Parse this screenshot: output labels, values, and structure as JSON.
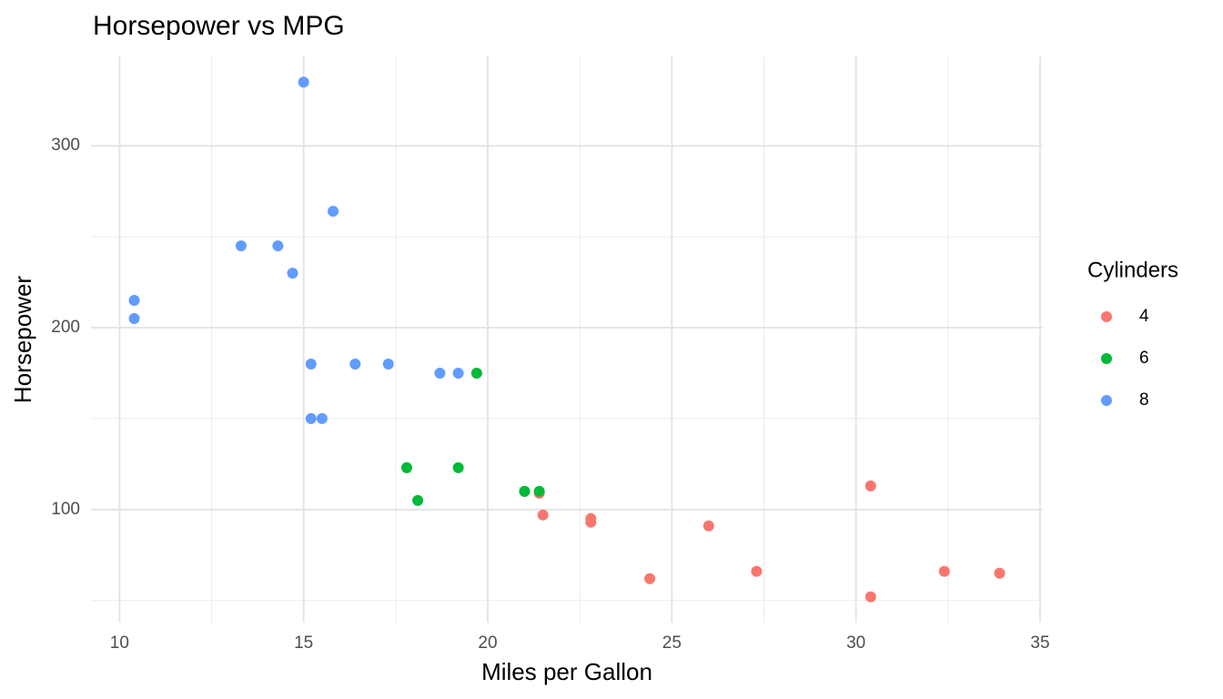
{
  "chart_data": {
    "type": "scatter",
    "title": "Horsepower vs MPG",
    "x_label": "Miles per Gallon",
    "y_label": "Horsepower",
    "legend_title": "Cylinders",
    "legend": "right",
    "grid": true,
    "xlim": [
      9.225,
      35.075
    ],
    "xticks": [
      10,
      15,
      20,
      25,
      30,
      35
    ],
    "ylim": [
      37.85,
      349.15
    ],
    "yticks": [
      100,
      200,
      300
    ],
    "series": [
      {
        "name": "4",
        "color": "#F8766D",
        "x": [
          22.8,
          24.4,
          22.8,
          32.4,
          30.4,
          33.9,
          21.5,
          27.3,
          26.0,
          30.4,
          21.4
        ],
        "values": [
          93,
          62,
          95,
          66,
          52,
          65,
          97,
          66,
          91,
          113,
          109
        ]
      },
      {
        "name": "6",
        "color": "#00BA38",
        "x": [
          21.0,
          21.0,
          21.4,
          18.1,
          19.2,
          17.8,
          19.7
        ],
        "values": [
          110,
          110,
          110,
          105,
          123,
          123,
          175
        ]
      },
      {
        "name": "8",
        "color": "#619CFF",
        "x": [
          18.7,
          14.3,
          16.4,
          17.3,
          15.2,
          10.4,
          10.4,
          14.7,
          15.5,
          15.2,
          13.3,
          19.2,
          15.8,
          15.0
        ],
        "values": [
          175,
          245,
          180,
          180,
          180,
          205,
          215,
          230,
          150,
          150,
          245,
          175,
          264,
          335
        ]
      }
    ]
  }
}
